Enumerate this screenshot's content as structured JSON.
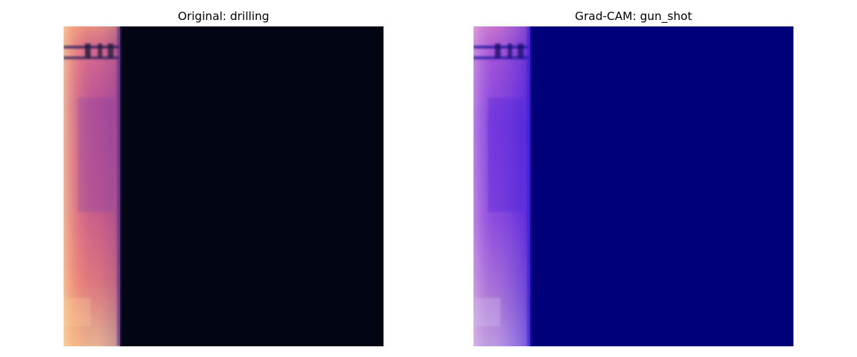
{
  "figure": {
    "panels": [
      {
        "title": "Original: drilling",
        "image": "mel-spectrogram",
        "colormap": "magma",
        "background_color": "#020514"
      },
      {
        "title": "Grad-CAM: gun_shot",
        "image": "grad-cam-heatmap-overlay",
        "colormap": "jet",
        "background_color": "#000078"
      }
    ]
  }
}
